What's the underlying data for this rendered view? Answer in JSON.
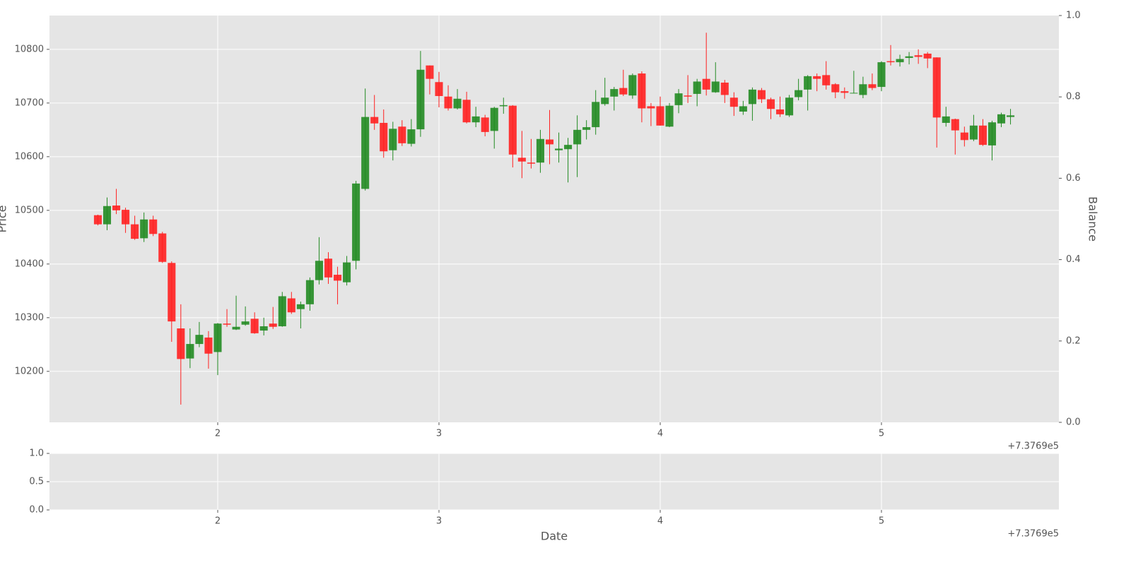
{
  "chart_data": [
    {
      "type": "candlestick",
      "ylabel": "Price",
      "y2label": "Balance",
      "x_offset_label": "+7.3769e5",
      "x": [
        1.4583,
        1.5,
        1.5417,
        1.5833,
        1.625,
        1.6667,
        1.7083,
        1.75,
        1.7917,
        1.8333,
        1.875,
        1.9167,
        1.9583,
        2,
        2.0417,
        2.0833,
        2.125,
        2.1667,
        2.2083,
        2.25,
        2.2917,
        2.3333,
        2.375,
        2.4167,
        2.4583,
        2.5,
        2.5417,
        2.5833,
        2.625,
        2.6667,
        2.7083,
        2.75,
        2.7917,
        2.8333,
        2.875,
        2.9167,
        2.9583,
        3,
        3.0417,
        3.0833,
        3.125,
        3.1667,
        3.2083,
        3.25,
        3.2917,
        3.3333,
        3.375,
        3.4167,
        3.4583,
        3.5,
        3.5417,
        3.5833,
        3.625,
        3.6667,
        3.7083,
        3.75,
        3.7917,
        3.8333,
        3.875,
        3.9167,
        3.9583,
        4,
        4.0417,
        4.0833,
        4.125,
        4.1667,
        4.2083,
        4.25,
        4.2917,
        4.3333,
        4.375,
        4.4167,
        4.4583,
        4.5,
        4.5417,
        4.5833,
        4.625,
        4.6667,
        4.7083,
        4.75,
        4.7917,
        4.8333,
        4.875,
        4.9167,
        4.9583,
        5,
        5.0417,
        5.0833,
        5.125,
        5.1667,
        5.2083,
        5.25,
        5.2917,
        5.3333,
        5.375,
        5.4167,
        5.4583,
        5.5,
        5.5417,
        5.5833
      ],
      "open": [
        10491,
        10474,
        10509,
        10501,
        10474,
        10448,
        10483,
        10457,
        10402,
        10280,
        10224,
        10251,
        10263,
        10236,
        10289,
        10278,
        10287,
        10298,
        10276,
        10289,
        10284,
        10336,
        10316,
        10325,
        10370,
        10410,
        10380,
        10366,
        10406,
        10540,
        10674,
        10663,
        10612,
        10656,
        10624,
        10651,
        10770,
        10739,
        10712,
        10690,
        10706,
        10664,
        10673,
        10648,
        10694,
        10695,
        10598,
        10589,
        10589,
        10632,
        10612,
        10614,
        10623,
        10650,
        10655,
        10698,
        10712,
        10728,
        10714,
        10755,
        10694,
        10694,
        10656,
        10696,
        10714,
        10717,
        10745,
        10720,
        10738,
        10710,
        10684,
        10698,
        10724,
        10707,
        10688,
        10677,
        10711,
        10725,
        10750,
        10752,
        10735,
        10722,
        10718,
        10715,
        10735,
        10730,
        10778,
        10776,
        10784,
        10789,
        10792,
        10785,
        10663,
        10670,
        10645,
        10632,
        10658,
        10621,
        10662,
        10674
      ],
      "high": [
        10492,
        10524,
        10540,
        10505,
        10490,
        10496,
        10490,
        10460,
        10405,
        10325,
        10280,
        10292,
        10275,
        10290,
        10316,
        10341,
        10321,
        10310,
        10300,
        10320,
        10348,
        10348,
        10330,
        10375,
        10450,
        10422,
        10395,
        10415,
        10555,
        10727,
        10715,
        10688,
        10665,
        10668,
        10670,
        10797,
        10770,
        10758,
        10733,
        10726,
        10721,
        10693,
        10678,
        10693,
        10710,
        10696,
        10648,
        10633,
        10650,
        10687,
        10645,
        10635,
        10677,
        10668,
        10724,
        10747,
        10730,
        10762,
        10755,
        10759,
        10700,
        10712,
        10700,
        10726,
        10752,
        10745,
        10831,
        10776,
        10743,
        10720,
        10704,
        10729,
        10728,
        10710,
        10712,
        10715,
        10745,
        10752,
        10755,
        10778,
        10737,
        10729,
        10760,
        10749,
        10755,
        10778,
        10808,
        10790,
        10795,
        10800,
        10795,
        10785,
        10693,
        10671,
        10656,
        10678,
        10670,
        10667,
        10682,
        10689
      ],
      "low": [
        10472,
        10463,
        10493,
        10458,
        10445,
        10441,
        10452,
        10402,
        10255,
        10138,
        10206,
        10245,
        10205,
        10193,
        10283,
        10277,
        10285,
        10270,
        10267,
        10279,
        10283,
        10307,
        10280,
        10313,
        10362,
        10363,
        10325,
        10360,
        10390,
        10537,
        10650,
        10598,
        10593,
        10620,
        10619,
        10637,
        10716,
        10692,
        10686,
        10688,
        10662,
        10655,
        10638,
        10615,
        10680,
        10580,
        10560,
        10578,
        10570,
        10586,
        10589,
        10552,
        10562,
        10632,
        10641,
        10695,
        10686,
        10713,
        10708,
        10664,
        10657,
        10658,
        10655,
        10681,
        10700,
        10694,
        10714,
        10719,
        10700,
        10676,
        10678,
        10667,
        10700,
        10670,
        10674,
        10674,
        10705,
        10686,
        10722,
        10725,
        10709,
        10708,
        10718,
        10709,
        10724,
        10722,
        10770,
        10768,
        10772,
        10773,
        10765,
        10617,
        10656,
        10604,
        10619,
        10629,
        10620,
        10593,
        10655,
        10660
      ],
      "close": [
        10474,
        10508,
        10500,
        10474,
        10447,
        10483,
        10456,
        10404,
        10293,
        10223,
        10251,
        10268,
        10233,
        10289,
        10287,
        10283,
        10293,
        10271,
        10284,
        10283,
        10340,
        10310,
        10325,
        10370,
        10406,
        10375,
        10369,
        10403,
        10550,
        10674,
        10662,
        10610,
        10652,
        10625,
        10651,
        10762,
        10745,
        10713,
        10690,
        10708,
        10664,
        10675,
        10646,
        10691,
        10696,
        10604,
        10591,
        10587,
        10633,
        10623,
        10615,
        10622,
        10650,
        10655,
        10702,
        10710,
        10726,
        10716,
        10752,
        10690,
        10690,
        10658,
        10695,
        10718,
        10712,
        10740,
        10725,
        10740,
        10715,
        10693,
        10694,
        10725,
        10707,
        10689,
        10679,
        10710,
        10724,
        10750,
        10745,
        10733,
        10720,
        10719,
        10719,
        10735,
        10728,
        10776,
        10776,
        10782,
        10787,
        10786,
        10783,
        10673,
        10675,
        10649,
        10631,
        10658,
        10622,
        10664,
        10679,
        10677
      ],
      "up_color": "#228b22",
      "down_color": "#ff2020",
      "xlim": [
        1.2396,
        5.802
      ],
      "xticks": [
        2,
        3,
        4,
        5
      ],
      "ylim": [
        10105,
        10863
      ],
      "yticks": [
        10200,
        10300,
        10400,
        10500,
        10600,
        10700,
        10800
      ],
      "y2lim": [
        0,
        1
      ],
      "y2ticks": [
        {
          "value": 0,
          "label": "0.0"
        },
        {
          "value": 0.2,
          "label": "0.2"
        },
        {
          "value": 0.4,
          "label": "0.4"
        },
        {
          "value": 0.6,
          "label": "0.6"
        },
        {
          "value": 0.8,
          "label": "0.8"
        },
        {
          "value": 1,
          "label": "1.0"
        }
      ],
      "grid": true
    },
    {
      "type": "line",
      "xlabel": "Date",
      "x_offset_label": "+7.3769e5",
      "xlim": [
        1.2396,
        5.802
      ],
      "xticks": [
        2,
        3,
        4,
        5
      ],
      "ylim": [
        0,
        1
      ],
      "yticks": [
        {
          "value": 0,
          "label": "0.0"
        },
        {
          "value": 0.5,
          "label": "0.5"
        },
        {
          "value": 1,
          "label": "1.0"
        }
      ],
      "grid": true
    }
  ]
}
